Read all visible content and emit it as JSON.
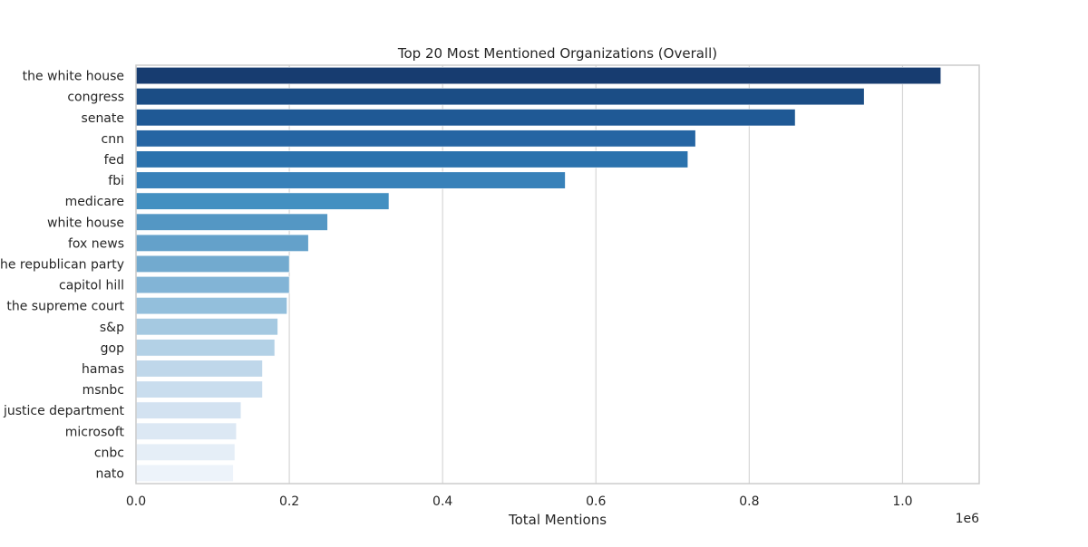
{
  "chart_data": {
    "type": "bar",
    "orientation": "horizontal",
    "title": "Top 20 Most Mentioned Organizations (Overall)",
    "xlabel": "Total Mentions",
    "ylabel": "",
    "x_scale_note": "1e6",
    "xlim": [
      0,
      1.0
    ],
    "xlim_max": 1.1,
    "x_ticks": [
      0.0,
      0.2,
      0.4,
      0.6,
      0.8,
      1.0
    ],
    "x_tick_labels": [
      "0.0",
      "0.2",
      "0.4",
      "0.6",
      "0.8",
      "1.0"
    ],
    "grid": true,
    "categories": [
      "the white house",
      "congress",
      "senate",
      "cnn",
      "fed",
      "fbi",
      "medicare",
      "white house",
      "fox news",
      "the republican party",
      "capitol hill",
      "the supreme court",
      "s&p",
      "gop",
      "hamas",
      "msnbc",
      "the justice department",
      "microsoft",
      "cnbc",
      "nato"
    ],
    "values": [
      1.05,
      0.95,
      0.86,
      0.73,
      0.72,
      0.56,
      0.33,
      0.25,
      0.225,
      0.2,
      0.2,
      0.197,
      0.185,
      0.181,
      0.165,
      0.165,
      0.137,
      0.131,
      0.129,
      0.127
    ],
    "colors": [
      "#173c70",
      "#1b4d85",
      "#1f5995",
      "#2565a3",
      "#2b72ad",
      "#3881b9",
      "#4390c1",
      "#5497c4",
      "#64a1ca",
      "#72aacf",
      "#82b4d6",
      "#93bfdc",
      "#a5c9e1",
      "#b3d1e6",
      "#bfd7ea",
      "#c9ddee",
      "#d3e2f1",
      "#dce8f4",
      "#e5eef7",
      "#edf3fa"
    ]
  }
}
